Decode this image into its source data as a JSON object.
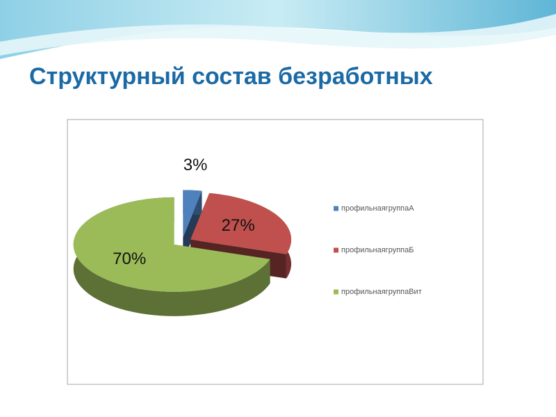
{
  "chart_data": {
    "type": "pie",
    "title": "Структурный состав безработных",
    "categories": [
      "профильнаягруппаА",
      "профильнаягруппаБ",
      "профильнаягруппаВит"
    ],
    "values": [
      3,
      27,
      70
    ],
    "value_labels": [
      "3%",
      "27%",
      "70%"
    ],
    "colors": [
      "#4f81bd",
      "#c0504d",
      "#9bbb59"
    ],
    "legend": "right"
  }
}
